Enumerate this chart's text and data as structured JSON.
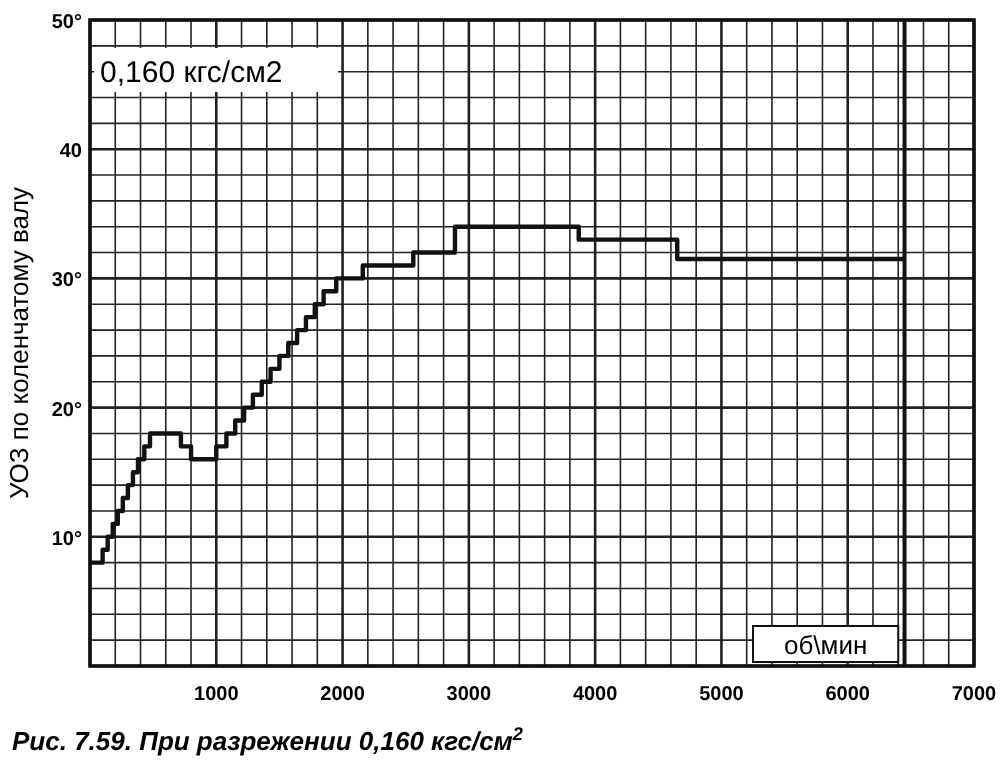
{
  "chart_data": {
    "type": "step",
    "title": "Рис. 7.59. При разрежении 0,160 кгс/см$^{2}$",
    "xlabel": "об\\мин",
    "ylabel": "УОЗ по коленчатому валу",
    "annotations": [
      "0,160 кгс/см2"
    ],
    "x": [
      0,
      100,
      140,
      180,
      220,
      260,
      300,
      340,
      380,
      430,
      475,
      720,
      800,
      1000,
      1080,
      1150,
      1220,
      1290,
      1360,
      1430,
      1500,
      1570,
      1640,
      1710,
      1780,
      1850,
      1950,
      2160,
      2560,
      2890,
      3870,
      4650,
      6450
    ],
    "series": [
      {
        "color": "#111111",
        "values": [
          8,
          9,
          10,
          11,
          12,
          13,
          14,
          15,
          16,
          17,
          18,
          17,
          16,
          17,
          18,
          19,
          20,
          21,
          22,
          23,
          24,
          25,
          26,
          27,
          28,
          29,
          30,
          31,
          32,
          34,
          33,
          31.5,
          31.5
        ]
      }
    ],
    "xlim": [
      0,
      7000
    ],
    "ylim": [
      0,
      50
    ],
    "xticks": [
      {
        "value": 0,
        "label": null
      },
      1000,
      2000,
      3000,
      4000,
      5000,
      6000,
      7000
    ],
    "yticks": [
      {
        "value": 0,
        "label": null
      },
      {
        "value": 10,
        "label": "10°"
      },
      {
        "value": 20,
        "label": "20°"
      },
      {
        "value": 30,
        "label": "30°"
      },
      {
        "value": 40,
        "label": "40"
      },
      {
        "value": 50,
        "label": "50°"
      }
    ],
    "grid": true,
    "ref_lines": [
      {
        "axis": "x",
        "value": 6450,
        "color": "#111111"
      }
    ]
  }
}
